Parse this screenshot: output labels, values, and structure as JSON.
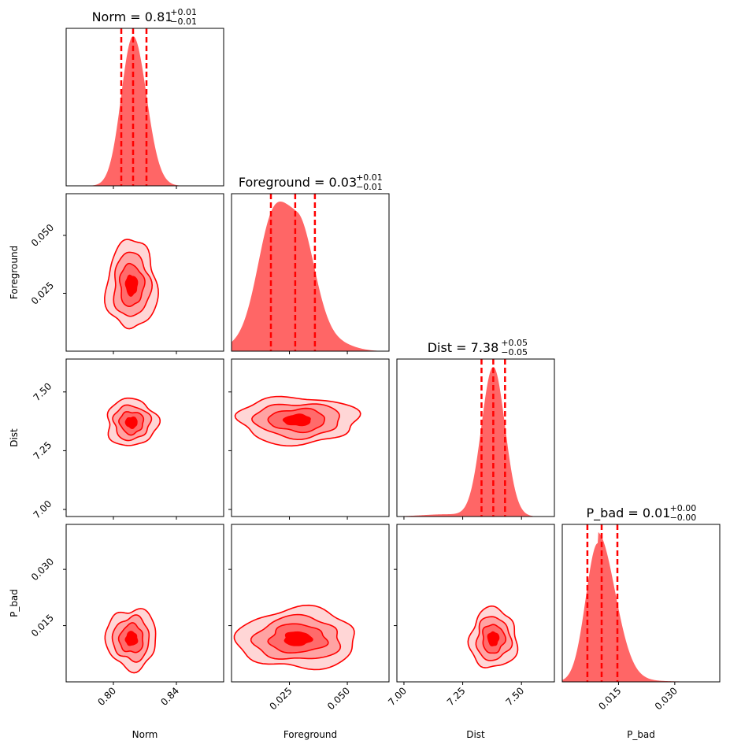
{
  "chart_data": {
    "type": "corner",
    "color": "#ff0000",
    "fill_color": "#ff6666",
    "parameters": [
      {
        "name": "Norm",
        "range": [
          0.77,
          0.87
        ],
        "ticks": [
          0.8,
          0.84
        ],
        "tick_labels": [
          "0.80",
          "0.84"
        ],
        "quantiles": [
          0.805,
          0.8125,
          0.821
        ],
        "peak": 0.8125,
        "title_value": "0.81",
        "title_plus": "+0.01",
        "title_minus": "−0.01"
      },
      {
        "name": "Foreground",
        "range": [
          0.0,
          0.068
        ],
        "ticks": [
          0.025,
          0.05
        ],
        "tick_labels": [
          "0.025",
          "0.050"
        ],
        "quantiles": [
          0.017,
          0.0275,
          0.036
        ],
        "peak": 0.0285,
        "title_value": "0.03",
        "title_plus": "+0.01",
        "title_minus": "−0.01"
      },
      {
        "name": "Dist",
        "range": [
          6.97,
          7.64
        ],
        "ticks": [
          7.0,
          7.25,
          7.5
        ],
        "tick_labels": [
          "7.00",
          "7.25",
          "7.50"
        ],
        "quantiles": [
          7.33,
          7.38,
          7.43
        ],
        "peak": 7.38,
        "title_value": "7.38",
        "title_plus": "+0.05",
        "title_minus": "−0.05"
      },
      {
        "name": "P_bad",
        "range": [
          0.0,
          0.042
        ],
        "ticks": [
          0.015,
          0.03
        ],
        "tick_labels": [
          "0.015",
          "0.030"
        ],
        "quantiles": [
          0.0067,
          0.0105,
          0.0147
        ],
        "peak": 0.0095,
        "title_value": "0.01",
        "title_plus": "+0.00",
        "title_minus": "−0.00"
      }
    ],
    "pair_centers": [
      {
        "x": "Norm",
        "y": "Foreground",
        "cx": 0.8115,
        "cy": 0.0285
      },
      {
        "x": "Norm",
        "y": "Dist",
        "cx": 0.8115,
        "cy": 7.37
      },
      {
        "x": "Foreground",
        "y": "Dist",
        "cx": 0.0285,
        "cy": 7.38
      },
      {
        "x": "Norm",
        "y": "P_bad",
        "cx": 0.8115,
        "cy": 0.0115
      },
      {
        "x": "Foreground",
        "y": "P_bad",
        "cx": 0.0285,
        "cy": 0.0115
      },
      {
        "x": "Dist",
        "y": "P_bad",
        "cx": 7.38,
        "cy": 0.0115
      }
    ]
  }
}
